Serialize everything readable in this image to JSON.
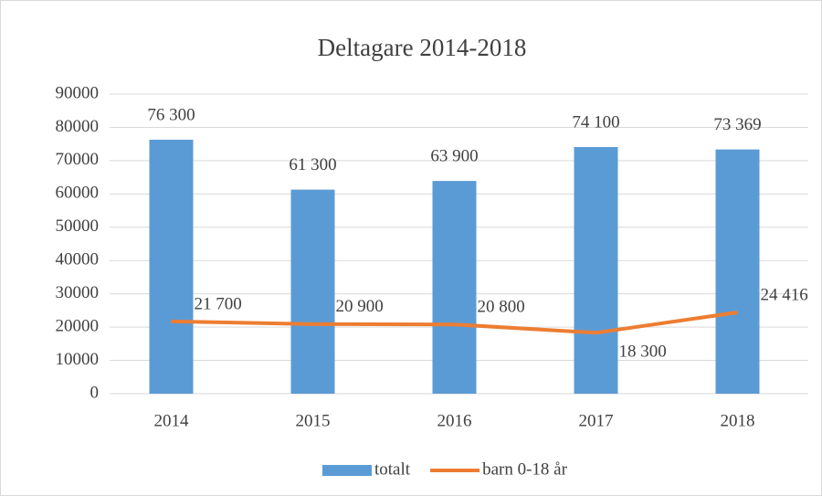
{
  "chart_data": {
    "type": "combo",
    "title": "Deltagare 2014-2018",
    "categories": [
      "2014",
      "2015",
      "2016",
      "2017",
      "2018"
    ],
    "series": [
      {
        "name": "totalt",
        "type": "bar",
        "color": "#5b9bd5",
        "values": [
          76300,
          61300,
          63900,
          74100,
          73369
        ],
        "value_labels": [
          "76 300",
          "61 300",
          "63 900",
          "74 100",
          "73 369"
        ]
      },
      {
        "name": "barn 0-18 år",
        "type": "line",
        "color": "#ed7d31",
        "values": [
          21700,
          20900,
          20800,
          18300,
          24416
        ],
        "value_labels": [
          "21 700",
          "20 900",
          "20 800",
          "18 300",
          "24 416"
        ]
      }
    ],
    "ylim": [
      0,
      90000
    ],
    "yticks": [
      0,
      10000,
      20000,
      30000,
      40000,
      50000,
      60000,
      70000,
      80000,
      90000
    ],
    "grid": true,
    "legend": "bottom"
  }
}
